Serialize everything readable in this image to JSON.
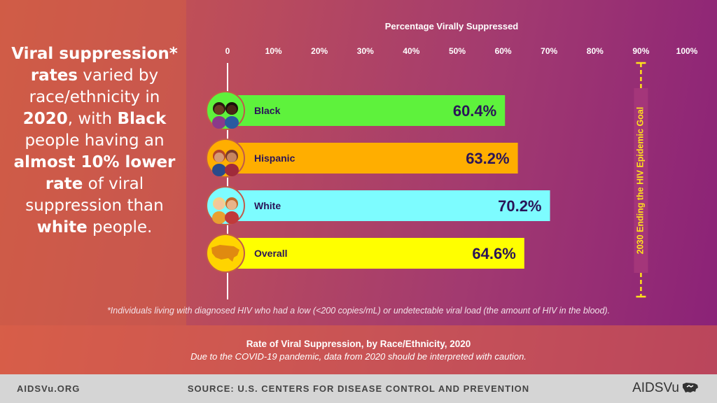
{
  "headline": {
    "parts": [
      {
        "text": "Viral suppression*",
        "bold": true
      },
      {
        "text": " ",
        "bold": false
      },
      {
        "text": "rates",
        "bold": true
      },
      {
        "text": " varied by race/ethnicity in ",
        "bold": false
      },
      {
        "text": "2020",
        "bold": true
      },
      {
        "text": ", with ",
        "bold": false
      },
      {
        "text": "Black",
        "bold": true
      },
      {
        "text": " people having an ",
        "bold": false
      },
      {
        "text": "almost 10% lower rate",
        "bold": true
      },
      {
        "text": " of viral suppression than ",
        "bold": false
      },
      {
        "text": "white",
        "bold": true
      },
      {
        "text": " people.",
        "bold": false
      }
    ]
  },
  "footnote": "*Individuals living with diagnosed HIV who had a low (<200 copies/mL) or undetectable viral load (the amount of HIV in the blood).",
  "caption": {
    "title": "Rate of Viral Suppression, by Race/Ethnicity, 2020",
    "subtitle": "Due to the COVID-19 pandemic, data from 2020 should be interpreted with caution."
  },
  "footer": {
    "site": "AIDSVu.ORG",
    "source": "SOURCE: U.S. CENTERS FOR DISEASE CONTROL AND PREVENTION",
    "logo_text": "AIDSVu"
  },
  "chart_data": {
    "type": "bar",
    "orientation": "horizontal",
    "title": "Percentage Virally Suppressed",
    "categories": [
      "Black",
      "Hispanic",
      "White",
      "Overall"
    ],
    "values": [
      60.4,
      63.2,
      70.2,
      64.6
    ],
    "value_labels": [
      "60.4%",
      "63.2%",
      "70.2%",
      "64.6%"
    ],
    "colors": [
      "#5ef23c",
      "#ffae00",
      "#7dfcff",
      "#ffff00"
    ],
    "icons": [
      "black-people-icon",
      "hispanic-people-icon",
      "white-people-icon",
      "us-map-icon"
    ],
    "icon_bg": [
      "#5ef23c",
      "#ffae00",
      "#7dfcff",
      "#ffd400"
    ],
    "xlim": [
      0,
      100
    ],
    "ticks": [
      0,
      10,
      20,
      30,
      40,
      50,
      60,
      70,
      80,
      90,
      100
    ],
    "tick_labels": [
      "0",
      "10%",
      "20%",
      "30%",
      "40%",
      "50%",
      "60%",
      "70%",
      "80%",
      "90%",
      "100%"
    ],
    "goal": {
      "value": 90,
      "label": "2030 Ending the HIV Epidemic Goal",
      "color": "#ffe21a"
    },
    "label_color": "#2a1458",
    "grid": true
  }
}
